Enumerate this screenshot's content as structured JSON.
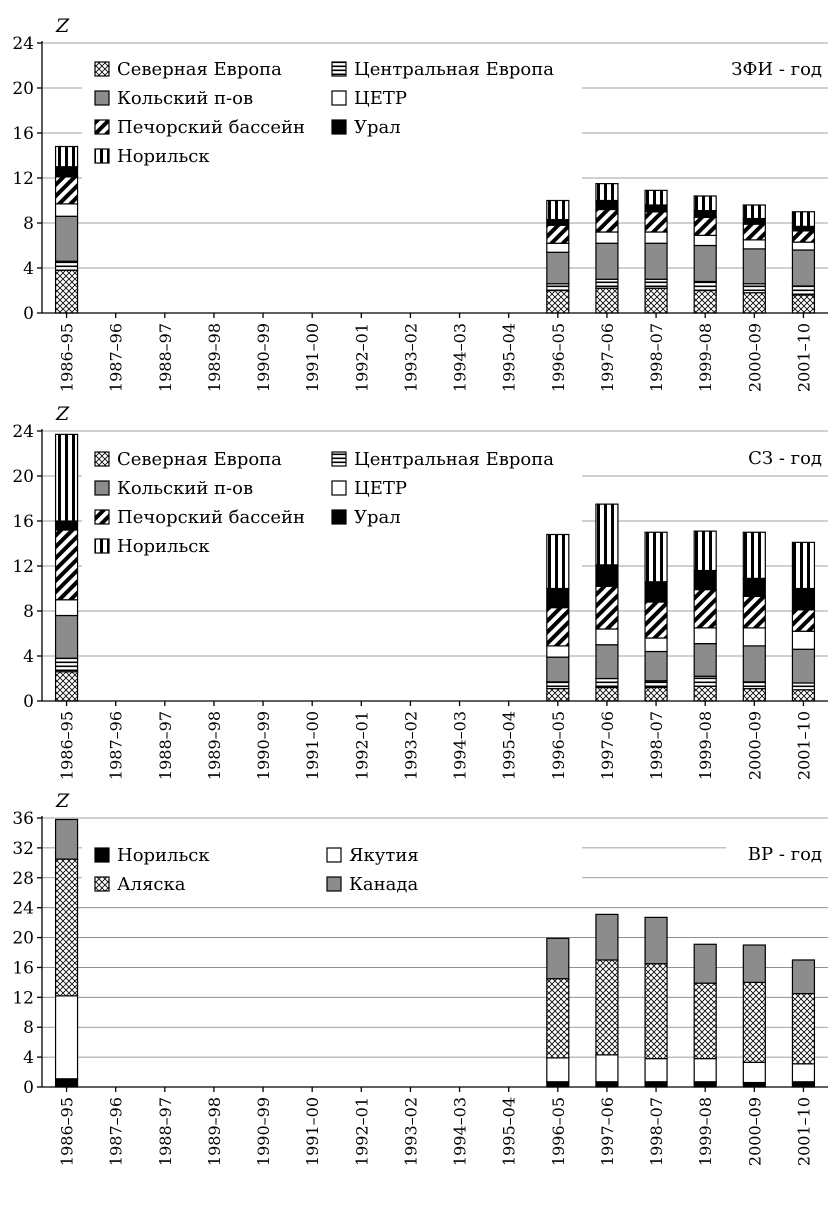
{
  "colors": {
    "gray": "#8c8c8c",
    "black": "#000000",
    "white": "#ffffff"
  },
  "chart_data": [
    {
      "type": "bar",
      "stacked": true,
      "corner_label": "ЗФИ - год",
      "ylabel": "Z",
      "ylim": [
        0,
        24
      ],
      "yticks": [
        0,
        4,
        8,
        12,
        16,
        20,
        24
      ],
      "grid": true,
      "categories": [
        "1986–95",
        "1987–96",
        "1988–97",
        "1989–98",
        "1990–99",
        "1991–00",
        "1992–01",
        "1993–02",
        "1994–03",
        "1995–04",
        "1996–05",
        "1997–06",
        "1998–07",
        "1999–08",
        "2000–09",
        "2001–10"
      ],
      "legend": {
        "columns": 2,
        "items": [
          {
            "name": "Северная Европа",
            "pattern": "crosshatch"
          },
          {
            "name": "Центральная Европа",
            "pattern": "hstripe"
          },
          {
            "name": "Кольский п-ов",
            "pattern": "gray"
          },
          {
            "name": "ЦЕТР",
            "pattern": "white"
          },
          {
            "name": "Печорский бассейн",
            "pattern": "diagonal"
          },
          {
            "name": "Урал",
            "pattern": "black"
          },
          {
            "name": "Норильск",
            "pattern": "vstripe"
          }
        ]
      },
      "series": [
        {
          "name": "Северная Европа",
          "pattern": "crosshatch",
          "values": [
            3.8,
            0,
            0,
            0,
            0,
            0,
            0,
            0,
            0,
            0,
            2.0,
            2.2,
            2.2,
            2.0,
            1.8,
            1.6
          ]
        },
        {
          "name": "Центральная Европа",
          "pattern": "hstripe",
          "values": [
            0.8,
            0,
            0,
            0,
            0,
            0,
            0,
            0,
            0,
            0,
            0.6,
            0.8,
            0.8,
            0.8,
            0.8,
            0.8
          ]
        },
        {
          "name": "Кольский п-ов",
          "pattern": "gray",
          "values": [
            4.0,
            0,
            0,
            0,
            0,
            0,
            0,
            0,
            0,
            0,
            2.8,
            3.2,
            3.2,
            3.2,
            3.1,
            3.2
          ]
        },
        {
          "name": "ЦЕТР",
          "pattern": "white",
          "values": [
            1.1,
            0,
            0,
            0,
            0,
            0,
            0,
            0,
            0,
            0,
            0.8,
            1.0,
            1.0,
            0.9,
            0.8,
            0.7
          ]
        },
        {
          "name": "Печорский бассейн",
          "pattern": "diagonal",
          "values": [
            2.4,
            0,
            0,
            0,
            0,
            0,
            0,
            0,
            0,
            0,
            1.6,
            2.0,
            1.8,
            1.6,
            1.4,
            1.0
          ]
        },
        {
          "name": "Урал",
          "pattern": "black",
          "values": [
            0.9,
            0,
            0,
            0,
            0,
            0,
            0,
            0,
            0,
            0,
            0.5,
            0.8,
            0.6,
            0.6,
            0.5,
            0.4
          ]
        },
        {
          "name": "Норильск",
          "pattern": "vstripe",
          "values": [
            1.8,
            0,
            0,
            0,
            0,
            0,
            0,
            0,
            0,
            0,
            1.7,
            1.5,
            1.3,
            1.3,
            1.2,
            1.3
          ]
        }
      ]
    },
    {
      "type": "bar",
      "stacked": true,
      "corner_label": "СЗ - год",
      "ylabel": "Z",
      "ylim": [
        0,
        24
      ],
      "yticks": [
        0,
        4,
        8,
        12,
        16,
        20,
        24
      ],
      "grid": true,
      "categories": [
        "1986–95",
        "1987–96",
        "1988–97",
        "1989–98",
        "1990–99",
        "1991–00",
        "1992–01",
        "1993–02",
        "1994–03",
        "1995–04",
        "1996–05",
        "1997–06",
        "1998–07",
        "1999–08",
        "2000–09",
        "2001–10"
      ],
      "legend": {
        "columns": 2,
        "items": [
          {
            "name": "Северная Европа",
            "pattern": "crosshatch"
          },
          {
            "name": "Центральная Европа",
            "pattern": "hstripe"
          },
          {
            "name": "Кольский п-ов",
            "pattern": "gray"
          },
          {
            "name": "ЦЕТР",
            "pattern": "white"
          },
          {
            "name": "Печорский бассейн",
            "pattern": "diagonal"
          },
          {
            "name": "Урал",
            "pattern": "black"
          },
          {
            "name": "Норильск",
            "pattern": "vstripe"
          }
        ]
      },
      "series": [
        {
          "name": "Северная Европа",
          "pattern": "crosshatch",
          "values": [
            2.6,
            0,
            0,
            0,
            0,
            0,
            0,
            0,
            0,
            0,
            1.1,
            1.2,
            1.2,
            1.3,
            1.1,
            1.0
          ]
        },
        {
          "name": "Центральная Европа",
          "pattern": "hstripe",
          "values": [
            1.2,
            0,
            0,
            0,
            0,
            0,
            0,
            0,
            0,
            0,
            0.6,
            0.8,
            0.6,
            0.9,
            0.6,
            0.6
          ]
        },
        {
          "name": "Кольский п-ов",
          "pattern": "gray",
          "values": [
            3.8,
            0,
            0,
            0,
            0,
            0,
            0,
            0,
            0,
            0,
            2.2,
            3.0,
            2.6,
            2.9,
            3.2,
            3.0
          ]
        },
        {
          "name": "ЦЕТР",
          "pattern": "white",
          "values": [
            1.4,
            0,
            0,
            0,
            0,
            0,
            0,
            0,
            0,
            0,
            1.0,
            1.4,
            1.2,
            1.4,
            1.6,
            1.6
          ]
        },
        {
          "name": "Печорский бассейн",
          "pattern": "diagonal",
          "values": [
            6.2,
            0,
            0,
            0,
            0,
            0,
            0,
            0,
            0,
            0,
            3.4,
            3.8,
            3.2,
            3.4,
            2.8,
            1.9
          ]
        },
        {
          "name": "Урал",
          "pattern": "black",
          "values": [
            0.8,
            0,
            0,
            0,
            0,
            0,
            0,
            0,
            0,
            0,
            1.7,
            1.9,
            1.8,
            1.7,
            1.6,
            1.9
          ]
        },
        {
          "name": "Норильск",
          "pattern": "vstripe",
          "values": [
            7.7,
            0,
            0,
            0,
            0,
            0,
            0,
            0,
            0,
            0,
            4.8,
            5.4,
            4.4,
            3.5,
            4.1,
            4.1
          ]
        }
      ]
    },
    {
      "type": "bar",
      "stacked": true,
      "corner_label": "ВР - год",
      "ylabel": "Z",
      "ylim": [
        0,
        36
      ],
      "yticks": [
        0,
        4,
        8,
        12,
        16,
        20,
        24,
        28,
        32,
        36
      ],
      "grid": true,
      "categories": [
        "1986–95",
        "1987–96",
        "1988–97",
        "1989–98",
        "1990–99",
        "1991–00",
        "1992–01",
        "1993–02",
        "1994–03",
        "1995–04",
        "1996–05",
        "1997–06",
        "1998–07",
        "1999–08",
        "2000–09",
        "2001–10"
      ],
      "legend": {
        "columns": 2,
        "items": [
          {
            "name": "Норильск",
            "pattern": "black"
          },
          {
            "name": "Якутия",
            "pattern": "white"
          },
          {
            "name": "Аляска",
            "pattern": "crosshatch"
          },
          {
            "name": "Канада",
            "pattern": "gray"
          }
        ]
      },
      "series": [
        {
          "name": "Норильск",
          "pattern": "black",
          "values": [
            1.1,
            0,
            0,
            0,
            0,
            0,
            0,
            0,
            0,
            0,
            0.7,
            0.7,
            0.7,
            0.7,
            0.6,
            0.7
          ]
        },
        {
          "name": "Якутия",
          "pattern": "white",
          "values": [
            11.1,
            0,
            0,
            0,
            0,
            0,
            0,
            0,
            0,
            0,
            3.2,
            3.6,
            3.1,
            3.1,
            2.7,
            2.4
          ]
        },
        {
          "name": "Аляска",
          "pattern": "crosshatch",
          "values": [
            18.3,
            0,
            0,
            0,
            0,
            0,
            0,
            0,
            0,
            0,
            10.6,
            12.7,
            12.7,
            10.1,
            10.7,
            9.4
          ]
        },
        {
          "name": "Канада",
          "pattern": "gray",
          "values": [
            5.3,
            0,
            0,
            0,
            0,
            0,
            0,
            0,
            0,
            0,
            5.4,
            6.1,
            6.2,
            5.2,
            5.0,
            4.5
          ]
        }
      ]
    }
  ]
}
